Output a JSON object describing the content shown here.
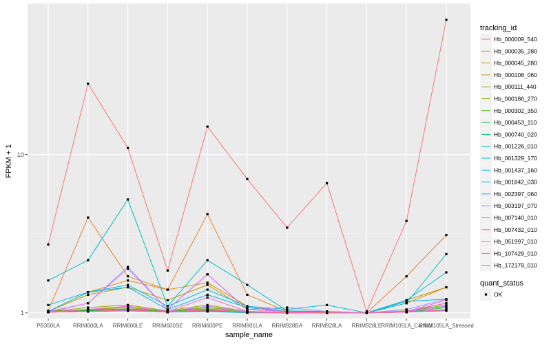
{
  "chart_data": {
    "type": "line",
    "xlabel": "sample_name",
    "ylabel": "FPKM + 1",
    "y_scale": "log10",
    "ylim": [
      0.92,
      90
    ],
    "y_ticks": [
      1,
      10
    ],
    "y_minor_ticks": [
      3.162
    ],
    "grid": true,
    "categories": [
      "PB350LA",
      "RRIM600LA",
      "RRIM600LE",
      "RRIM600SE",
      "RRIM600PE",
      "RRIM901LA",
      "RRIM928BA",
      "RRIM928LA",
      "RRIM928LE",
      "RRIM105LA_Control",
      "RRIM105LA_Stressed"
    ],
    "legend": {
      "position": "right",
      "color_title": "tracking_id",
      "shape_title": "quant_status",
      "shape_entries": [
        "OK"
      ]
    },
    "series": [
      {
        "name": "Hb_000009_540",
        "color": "#F8766D",
        "values": [
          2.7,
          28.0,
          11.0,
          1.85,
          15.0,
          7.0,
          3.45,
          6.6,
          1.02,
          3.8,
          71.0
        ]
      },
      {
        "name": "Hb_000035_280",
        "color": "#EA8331",
        "values": [
          1.03,
          4.0,
          1.7,
          1.4,
          4.2,
          1.3,
          1.02,
          1.01,
          1.0,
          1.7,
          3.1
        ]
      },
      {
        "name": "Hb_000045_280",
        "color": "#D89000",
        "values": [
          1.02,
          1.35,
          1.6,
          1.4,
          1.55,
          1.1,
          1.02,
          1.01,
          1.0,
          1.2,
          1.45
        ]
      },
      {
        "name": "Hb_000108_060",
        "color": "#C09B00",
        "values": [
          1.02,
          1.3,
          1.45,
          1.2,
          1.5,
          1.05,
          1.02,
          1.0,
          1.0,
          1.15,
          1.45
        ]
      },
      {
        "name": "Hb_000111_440",
        "color": "#A3A500",
        "values": [
          1.02,
          1.08,
          1.12,
          1.03,
          1.12,
          1.02,
          1.01,
          1.0,
          1.0,
          1.03,
          1.15
        ]
      },
      {
        "name": "Hb_000186_270",
        "color": "#7CAE00",
        "values": [
          1.02,
          1.05,
          1.08,
          1.02,
          1.08,
          1.02,
          1.01,
          1.0,
          1.0,
          1.02,
          1.12
        ]
      },
      {
        "name": "Hb_000302_350",
        "color": "#39B600",
        "values": [
          1.01,
          1.04,
          1.06,
          1.02,
          1.06,
          1.01,
          1.01,
          1.0,
          1.0,
          1.02,
          1.1
        ]
      },
      {
        "name": "Hb_000453_110",
        "color": "#00BB4E",
        "values": [
          1.01,
          1.03,
          1.05,
          1.01,
          1.04,
          1.01,
          1.0,
          1.0,
          1.0,
          1.01,
          1.08
        ]
      },
      {
        "name": "Hb_000740_020",
        "color": "#00BF7D",
        "values": [
          1.01,
          1.02,
          1.04,
          1.01,
          1.03,
          1.01,
          1.0,
          1.0,
          1.0,
          1.01,
          1.05
        ]
      },
      {
        "name": "Hb_001226_010",
        "color": "#00C1A3",
        "values": [
          1.01,
          1.02,
          1.03,
          1.01,
          1.02,
          1.0,
          1.0,
          1.0,
          1.0,
          1.01,
          1.04
        ]
      },
      {
        "name": "Hb_001329_170",
        "color": "#00BFC4",
        "values": [
          1.6,
          2.15,
          5.2,
          1.1,
          2.15,
          1.5,
          1.03,
          1.02,
          1.0,
          1.15,
          2.35
        ]
      },
      {
        "name": "Hb_001437_160",
        "color": "#00BAE0",
        "values": [
          1.02,
          1.35,
          1.5,
          1.1,
          1.4,
          1.1,
          1.05,
          1.12,
          1.0,
          1.2,
          1.8
        ]
      },
      {
        "name": "Hb_001842_030",
        "color": "#00B0F6",
        "values": [
          1.12,
          1.35,
          1.45,
          1.05,
          1.3,
          1.08,
          1.02,
          1.02,
          1.0,
          1.18,
          1.22
        ]
      },
      {
        "name": "Hb_002397_060",
        "color": "#35A2FF",
        "values": [
          1.01,
          1.02,
          1.03,
          1.01,
          1.02,
          1.01,
          1.0,
          1.0,
          1.0,
          1.01,
          1.03
        ]
      },
      {
        "name": "Hb_003197_070",
        "color": "#9590FF",
        "values": [
          1.02,
          1.15,
          1.95,
          1.05,
          1.75,
          1.05,
          1.08,
          1.02,
          1.0,
          1.05,
          1.22
        ]
      },
      {
        "name": "Hb_007140_010",
        "color": "#C77CFF",
        "values": [
          1.01,
          1.05,
          1.1,
          1.02,
          1.1,
          1.02,
          1.01,
          1.0,
          1.0,
          1.02,
          1.1
        ]
      },
      {
        "name": "Hb_007432_010",
        "color": "#E76BF3",
        "values": [
          1.01,
          1.15,
          1.9,
          1.05,
          1.75,
          1.05,
          1.02,
          1.0,
          1.0,
          1.02,
          1.2
        ]
      },
      {
        "name": "Hb_051997_010",
        "color": "#FA62DB",
        "values": [
          1.01,
          1.05,
          1.1,
          1.02,
          1.25,
          1.02,
          1.01,
          1.0,
          1.0,
          1.02,
          1.15
        ]
      },
      {
        "name": "Hb_107429_010",
        "color": "#FF62BC",
        "values": [
          1.01,
          1.02,
          1.05,
          1.01,
          1.05,
          1.01,
          1.0,
          1.0,
          1.0,
          1.01,
          1.05
        ]
      },
      {
        "name": "Hb_172179_010",
        "color": "#FF6C91",
        "values": [
          1.01,
          1.02,
          1.04,
          1.01,
          1.04,
          1.01,
          1.0,
          1.0,
          1.0,
          1.01,
          1.04
        ]
      }
    ]
  }
}
